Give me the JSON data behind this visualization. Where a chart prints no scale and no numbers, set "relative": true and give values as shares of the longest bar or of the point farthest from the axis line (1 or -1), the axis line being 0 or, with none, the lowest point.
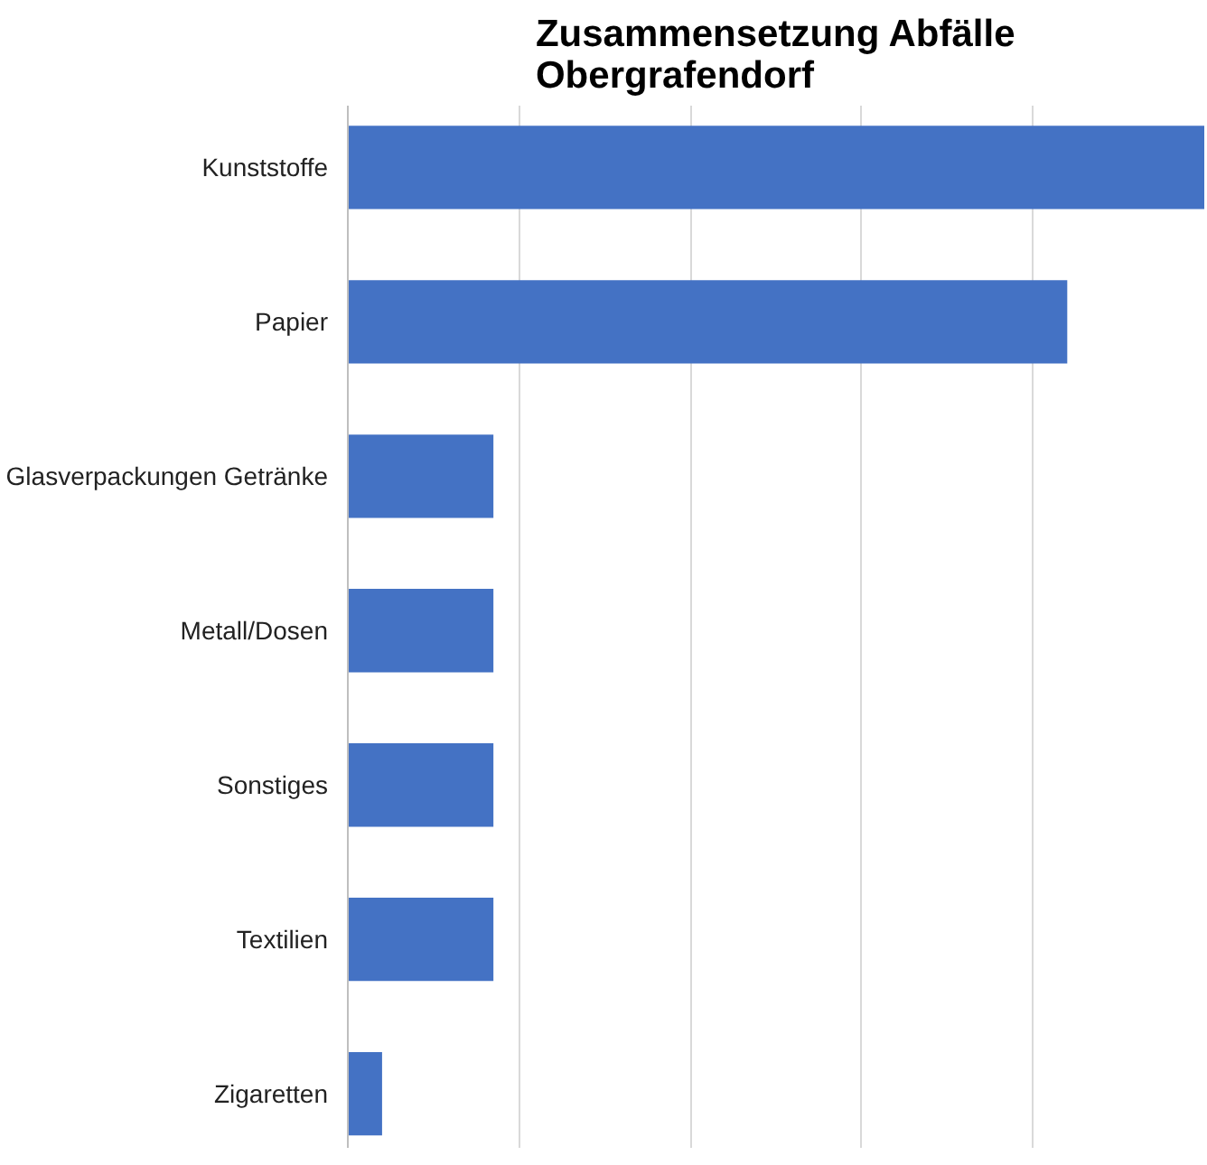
{
  "chart_data": {
    "type": "bar",
    "orientation": "horizontal",
    "relative": true,
    "title": "Zusammensetzung Abfälle\nObergrafendorf",
    "categories": [
      "Kunststoffe",
      "Papier",
      "Glasverpackungen Getränke",
      "Metall/Dosen",
      "Sonstiges",
      "Textilien",
      "Zigaretten"
    ],
    "values": [
      1,
      0.84,
      0.17,
      0.17,
      0.17,
      0.17,
      0.04
    ],
    "color": "#4472c4",
    "grid": "x"
  }
}
